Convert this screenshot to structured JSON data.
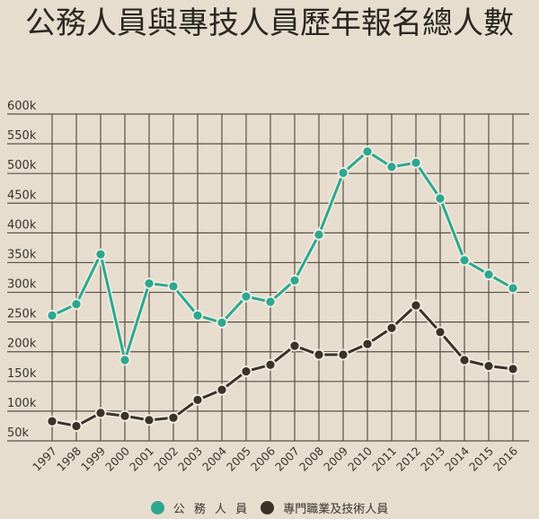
{
  "title": "公務人員與專技人員歷年報名總人數",
  "legend": [
    {
      "label": "公 務 人 員",
      "color": "#2ba88f"
    },
    {
      "label": "專門職業及技術人員",
      "color": "#3a3129"
    }
  ],
  "chart_data": {
    "type": "line",
    "title": "公務人員與專技人員歷年報名總人數",
    "xlabel": "",
    "ylabel": "",
    "ylim": [
      50000,
      600000
    ],
    "yticks": [
      50000,
      100000,
      150000,
      200000,
      250000,
      300000,
      350000,
      400000,
      450000,
      500000,
      550000,
      600000
    ],
    "ytick_labels": [
      "50k",
      "100k",
      "150k",
      "200k",
      "250k",
      "300k",
      "350k",
      "400k",
      "450k",
      "500k",
      "550k",
      "600k"
    ],
    "grid": true,
    "legend_position": "bottom",
    "categories": [
      "1997",
      "1998",
      "1999",
      "2000",
      "2001",
      "2002",
      "2003",
      "2004",
      "2005",
      "2006",
      "2007",
      "2008",
      "2009",
      "2010",
      "2011",
      "2012",
      "2013",
      "2014",
      "2015",
      "2016"
    ],
    "series": [
      {
        "name": "公務人員",
        "color": "#2ba88f",
        "values": [
          261000,
          280000,
          364000,
          186000,
          315000,
          310000,
          261000,
          249000,
          293000,
          284000,
          320000,
          397000,
          501000,
          537000,
          511000,
          518000,
          458000,
          354000,
          330000,
          307000
        ]
      },
      {
        "name": "專門職業及技術人員",
        "color": "#3a3129",
        "values": [
          83000,
          75000,
          97000,
          92000,
          85000,
          89000,
          119000,
          136000,
          167000,
          178000,
          210000,
          195000,
          195000,
          213000,
          240000,
          278000,
          233000,
          186000,
          176000,
          171000
        ]
      }
    ]
  }
}
